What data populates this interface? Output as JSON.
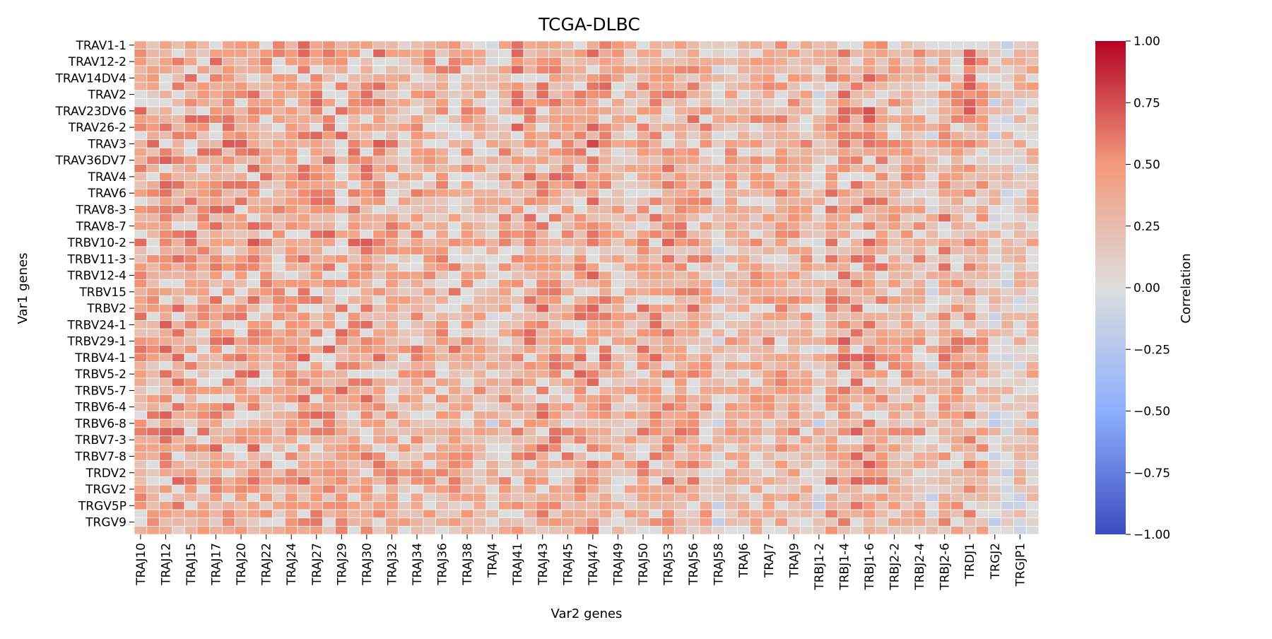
{
  "chart_data": {
    "type": "heatmap",
    "title": "TCGA-DLBC",
    "xlabel": "Var2 genes",
    "ylabel": "Var1 genes",
    "colorbar": {
      "label": "Correlation",
      "range": [
        -1.0,
        1.0
      ],
      "ticks": [
        "1.00",
        "0.75",
        "0.50",
        "0.25",
        "0.00",
        "−0.25",
        "−0.50",
        "−0.75",
        "−1.00"
      ],
      "colormap": "coolwarm",
      "colors": [
        "#3b4cc0",
        "#dddddd",
        "#b40426"
      ]
    },
    "x_tick_labels": [
      "TRAJ10",
      "TRAJ12",
      "TRAJ15",
      "TRAJ17",
      "TRAJ20",
      "TRAJ22",
      "TRAJ24",
      "TRAJ27",
      "TRAJ29",
      "TRAJ30",
      "TRAJ32",
      "TRAJ34",
      "TRAJ36",
      "TRAJ38",
      "TRAJ4",
      "TRAJ41",
      "TRAJ43",
      "TRAJ45",
      "TRAJ47",
      "TRAJ49",
      "TRAJ50",
      "TRAJ53",
      "TRAJ56",
      "TRAJ58",
      "TRAJ6",
      "TRAJ7",
      "TRAJ9",
      "TRBJ1-2",
      "TRBJ1-4",
      "TRBJ1-6",
      "TRBJ2-2",
      "TRBJ2-4",
      "TRBJ2-6",
      "TRDJ1",
      "TRGJ2",
      "TRGJP1"
    ],
    "y_tick_labels": [
      "TRAV1-1",
      "TRAV12-2",
      "TRAV14DV4",
      "TRAV2",
      "TRAV23DV6",
      "TRAV26-2",
      "TRAV3",
      "TRAV36DV7",
      "TRAV4",
      "TRAV6",
      "TRAV8-3",
      "TRAV8-7",
      "TRBV10-2",
      "TRBV11-3",
      "TRBV12-4",
      "TRBV15",
      "TRBV2",
      "TRBV24-1",
      "TRBV29-1",
      "TRBV4-1",
      "TRBV5-2",
      "TRBV5-7",
      "TRBV6-4",
      "TRBV6-8",
      "TRBV7-3",
      "TRBV7-8",
      "TRDV2",
      "TRGV2",
      "TRGV5P",
      "TRGV9"
    ],
    "n_columns": 72,
    "n_rows": 60,
    "column_profile": [
      0.55,
      0.5,
      0.62,
      0.6,
      0.55,
      0.5,
      0.6,
      0.55,
      0.55,
      0.6,
      0.5,
      0.45,
      0.65,
      0.6,
      0.6,
      0.6,
      0.6,
      0.55,
      0.6,
      0.55,
      0.45,
      0.35,
      0.45,
      0.4,
      0.45,
      0.5,
      0.4,
      0.35,
      0.15,
      0.45,
      0.55,
      0.55,
      0.6,
      0.55,
      0.5,
      0.55,
      0.65,
      0.55,
      0.35,
      0.3,
      0.5,
      0.55,
      0.55,
      0.5,
      0.5,
      0.45,
      0.05,
      0.35,
      0.4,
      0.4,
      0.45,
      0.45,
      0.4,
      0.35,
      0.1,
      0.55,
      0.6,
      0.6,
      0.65,
      0.5,
      0.4,
      0.4,
      0.4,
      0.1,
      0.55,
      0.45,
      0.6,
      0.4,
      0.05,
      0.05,
      0.1,
      0.25
    ],
    "row_profile": [
      0.55,
      0.6,
      0.6,
      0.6,
      0.55,
      0.6,
      0.55,
      0.55,
      0.6,
      0.6,
      0.6,
      0.55,
      0.65,
      0.6,
      0.55,
      0.55,
      0.6,
      0.6,
      0.55,
      0.55,
      0.55,
      0.55,
      0.6,
      0.55,
      0.6,
      0.55,
      0.6,
      0.6,
      0.55,
      0.55,
      0.55,
      0.55,
      0.6,
      0.55,
      0.55,
      0.55,
      0.6,
      0.6,
      0.6,
      0.55,
      0.6,
      0.55,
      0.6,
      0.55,
      0.5,
      0.55,
      0.4,
      0.6,
      0.55,
      0.55,
      0.55,
      0.55,
      0.55,
      0.55,
      0.45,
      0.45,
      0.45,
      0.5,
      0.45,
      0.4
    ],
    "groups": {
      "high_corr_columns": [
        40,
        53,
        56,
        69
      ],
      "gray_columns": [
        29,
        46,
        63,
        68,
        69
      ],
      "trg_rows": [
        55,
        60
      ]
    }
  }
}
